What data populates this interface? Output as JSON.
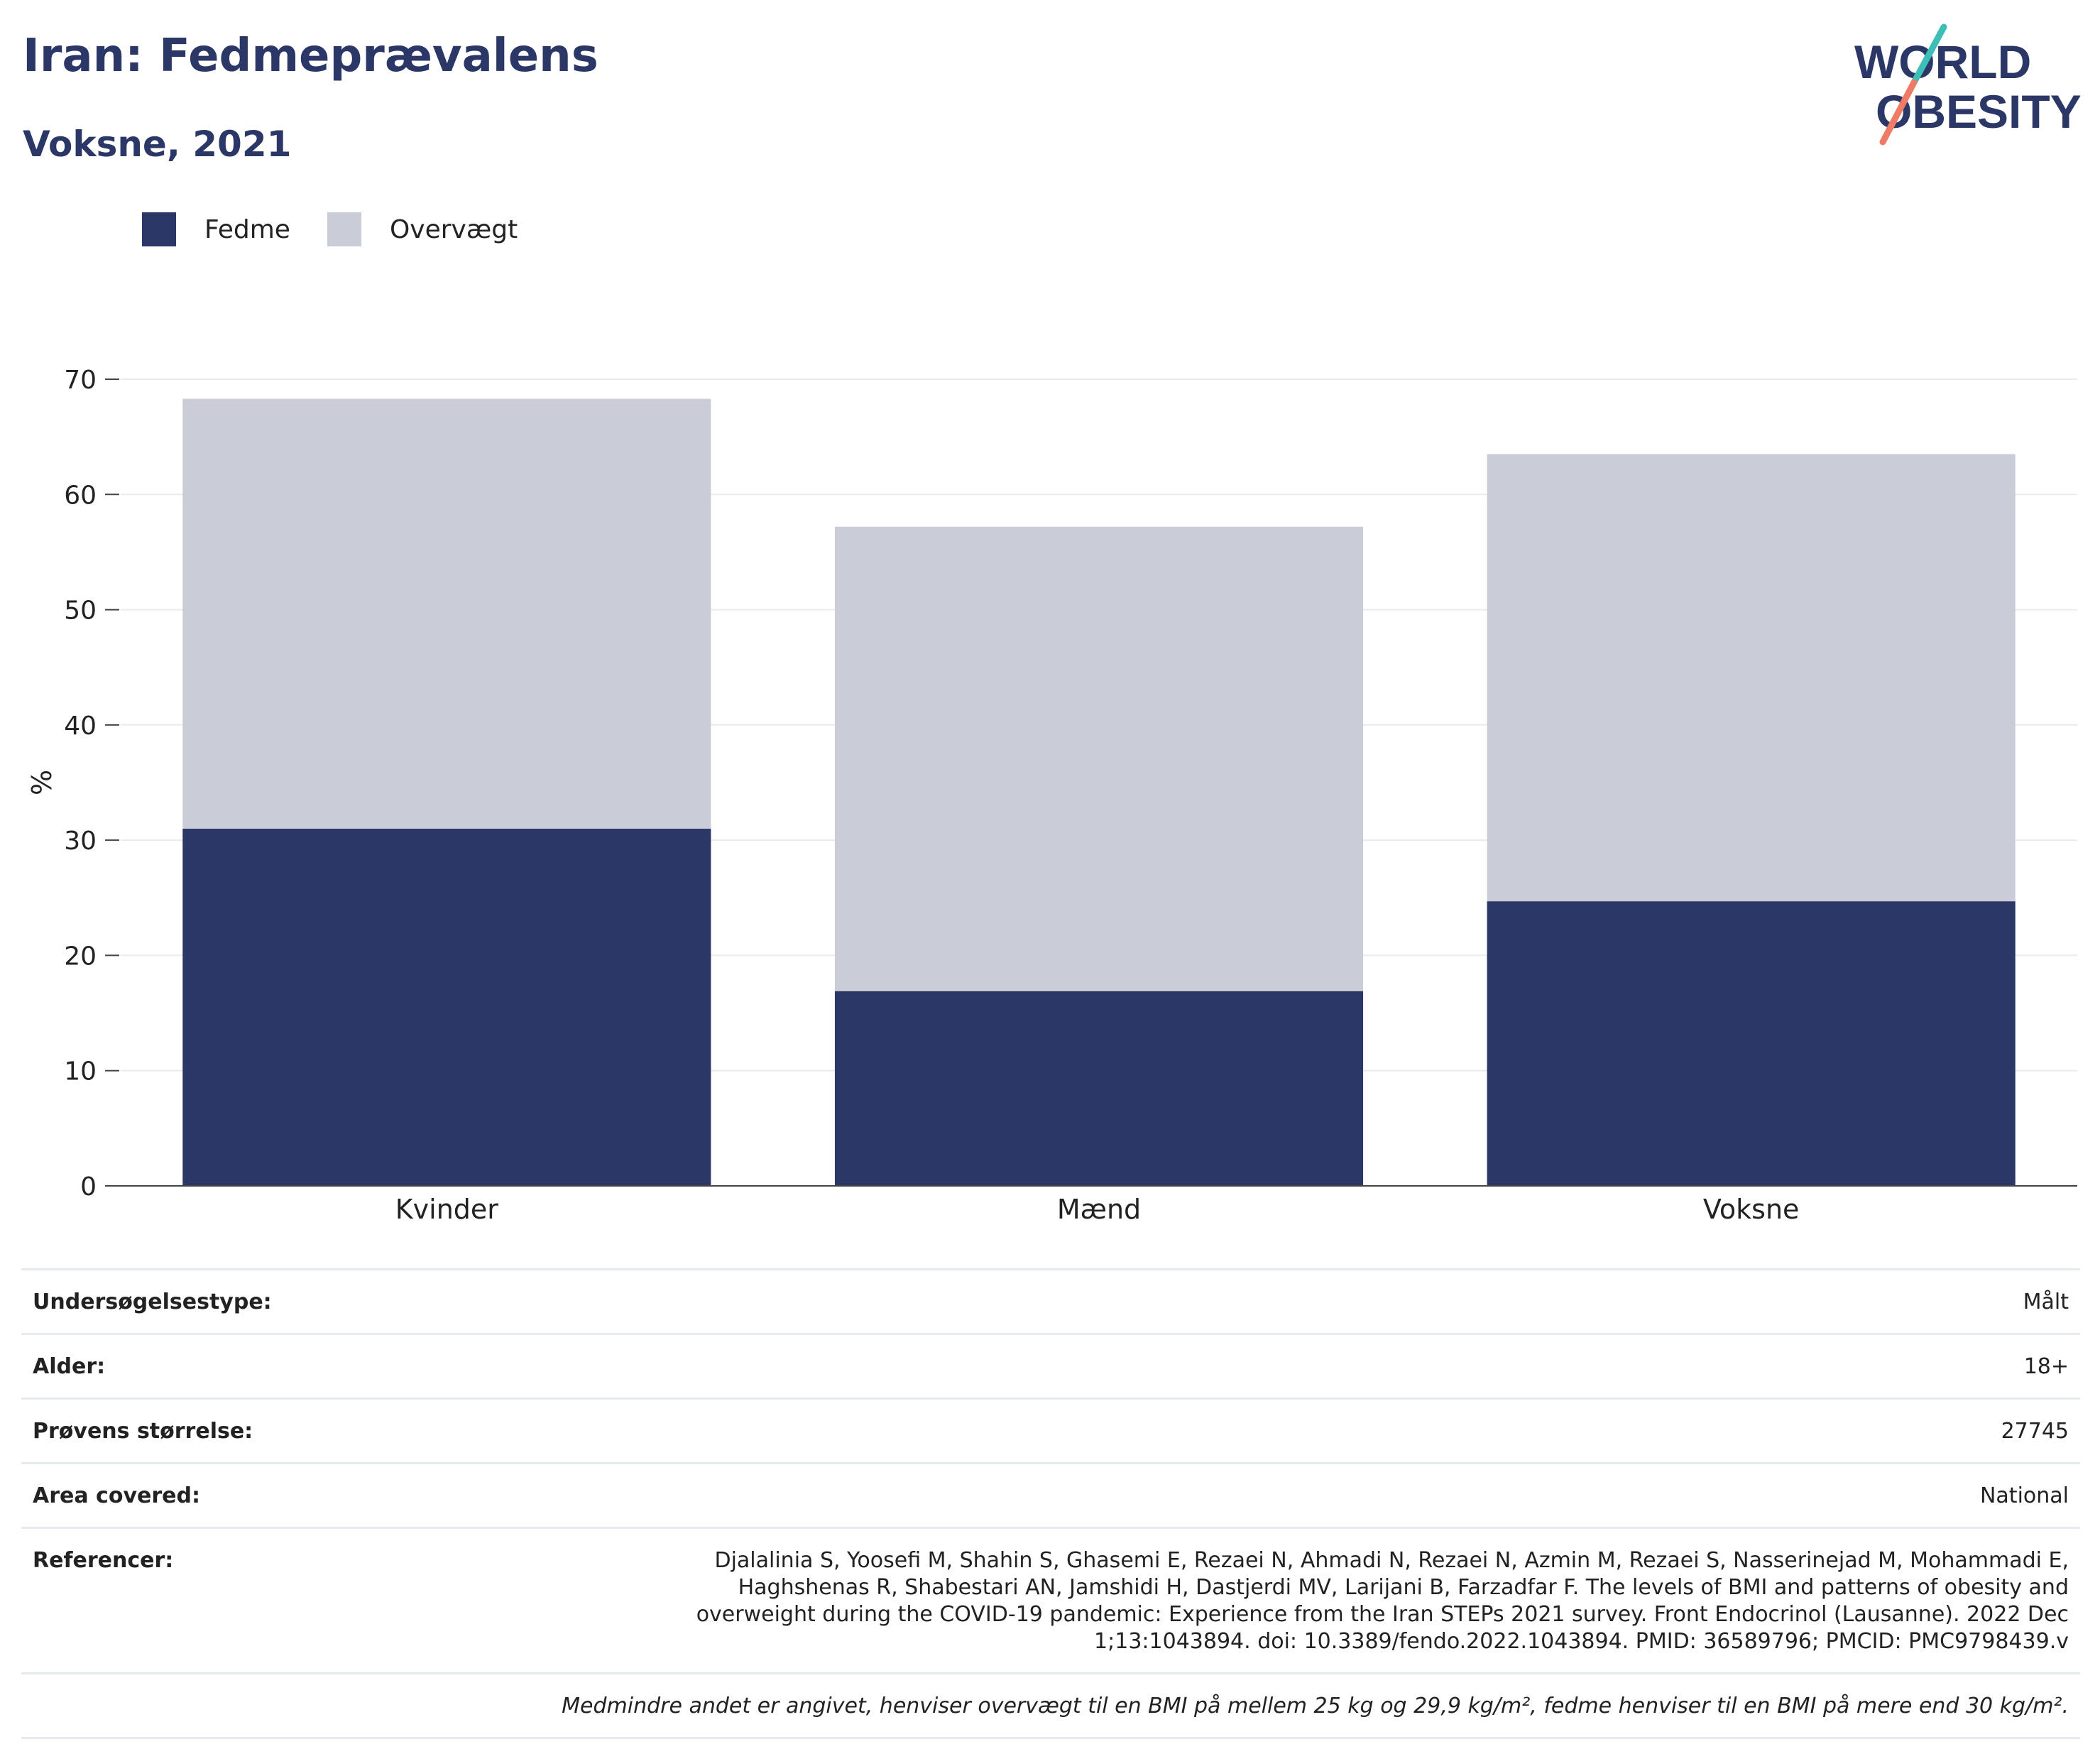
{
  "title": "Iran: Fedmeprævalens",
  "subtitle": "Voksne, 2021",
  "logo": {
    "line1": "WORLD",
    "line2": "OBESITY"
  },
  "colors": {
    "obesity": "#2b3766",
    "overweight": "#cacdd8",
    "title": "#2b3766",
    "logo_slash_teal": "#3dbfb8",
    "logo_slash_coral": "#ef7b66"
  },
  "chart_data": {
    "type": "bar",
    "stacked": true,
    "categories": [
      "Kvinder",
      "Mænd",
      "Voksne"
    ],
    "series": [
      {
        "name": "Fedme",
        "values": [
          31.0,
          16.9,
          24.7
        ]
      },
      {
        "name": "Overvægt",
        "values": [
          37.3,
          40.3,
          38.8
        ]
      }
    ],
    "ylabel": "%",
    "ylim": [
      0,
      70
    ],
    "yticks": [
      0,
      10,
      20,
      30,
      40,
      50,
      60,
      70
    ],
    "grid": true,
    "legend_position": "top-left"
  },
  "info": {
    "survey_type": {
      "label": "Undersøgelsestype:",
      "value": "Målt"
    },
    "age": {
      "label": "Alder:",
      "value": "18+"
    },
    "sample_size": {
      "label": "Prøvens størrelse:",
      "value": "27745"
    },
    "area": {
      "label": "Area covered:",
      "value": "National"
    },
    "references": {
      "label": "Referencer:",
      "value": "Djalalinia S, Yoosefi M, Shahin S, Ghasemi E, Rezaei N, Ahmadi N, Rezaei N, Azmin M, Rezaei S, Nasserinejad M, Mohammadi E, Haghshenas R, Shabestari AN, Jamshidi H, Dastjerdi MV, Larijani B, Farzadfar F. The levels of BMI and patterns of obesity and overweight during the COVID-19 pandemic: Experience from the Iran STEPs 2021 survey. Front Endocrinol (Lausanne). 2022 Dec 1;13:1043894. doi: 10.3389/fendo.2022.1043894. PMID: 36589796; PMCID: PMC9798439.v"
    }
  },
  "note": "Medmindre andet er angivet, henviser overvægt til en BMI på mellem 25 kg og 29,9 kg/m², fedme henviser til en BMI på mere end 30 kg/m²."
}
